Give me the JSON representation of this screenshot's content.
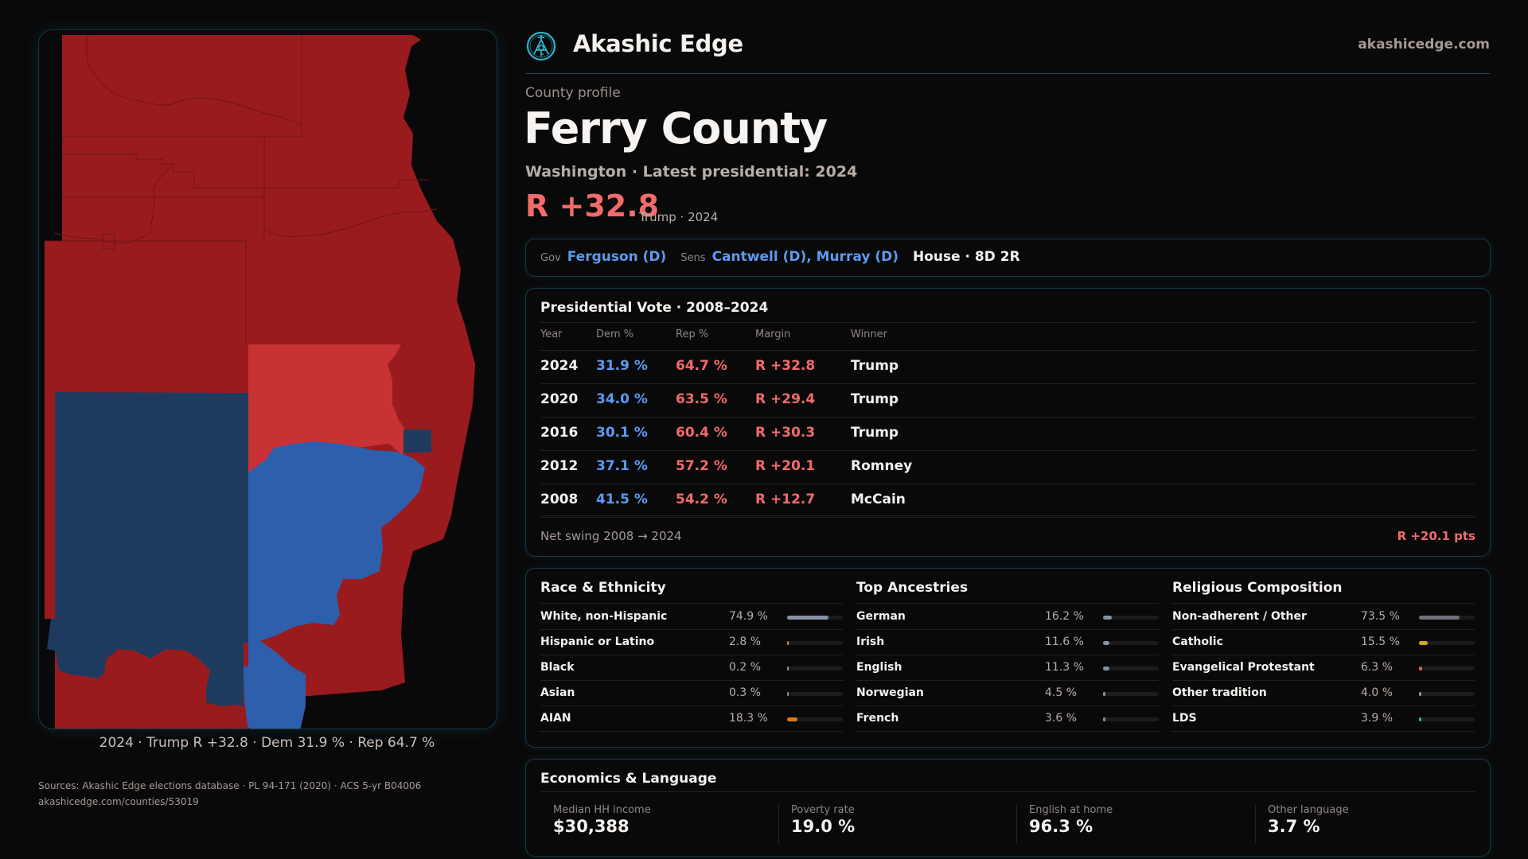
{
  "header": {
    "brand": "Akashic Edge",
    "logo_icon": "compass-key-emblem-icon",
    "site": "akashicedge.com"
  },
  "profile": {
    "label": "County profile",
    "county": "Ferry County",
    "subtitle": "Washington · Latest presidential: 2024",
    "margin": "R +32.8",
    "margin_sub": "Trump · 2024"
  },
  "officials": {
    "gov_label": "Gov",
    "gov": "Ferguson (D)",
    "sens_label": "Sens",
    "sens": "Cantwell (D), Murray (D)",
    "house": "House · 8D 2R"
  },
  "presidential": {
    "title": "Presidential Vote · 2008–2024",
    "columns": [
      "Year",
      "Dem %",
      "Rep %",
      "Margin",
      "Winner"
    ],
    "rows": [
      {
        "year": "2024",
        "dem": "31.9 %",
        "rep": "64.7 %",
        "margin": "R +32.8",
        "winner": "Trump"
      },
      {
        "year": "2020",
        "dem": "34.0 %",
        "rep": "63.5 %",
        "margin": "R +29.4",
        "winner": "Trump"
      },
      {
        "year": "2016",
        "dem": "30.1 %",
        "rep": "60.4 %",
        "margin": "R +30.3",
        "winner": "Trump"
      },
      {
        "year": "2012",
        "dem": "37.1 %",
        "rep": "57.2 %",
        "margin": "R +20.1",
        "winner": "Romney"
      },
      {
        "year": "2008",
        "dem": "41.5 %",
        "rep": "54.2 %",
        "margin": "R +12.7",
        "winner": "McCain"
      }
    ],
    "net_swing_label": "Net swing 2008 → 2024",
    "net_swing_value": "R +20.1 pts"
  },
  "demographics": [
    {
      "title": "Race & Ethnicity",
      "rows": [
        {
          "label": "White, non-Hispanic",
          "value": "74.9 %",
          "pct": 74.9,
          "color": "#8792a6"
        },
        {
          "label": "Hispanic or Latino",
          "value": "2.8 %",
          "pct": 2.8,
          "color": "#e08a1e"
        },
        {
          "label": "Black",
          "value": "0.2 %",
          "pct": 0.2,
          "color": "#8792a6"
        },
        {
          "label": "Asian",
          "value": "0.3 %",
          "pct": 0.3,
          "color": "#8792a6"
        },
        {
          "label": "AIAN",
          "value": "18.3 %",
          "pct": 18.3,
          "color": "#d9791a"
        }
      ]
    },
    {
      "title": "Top Ancestries",
      "rows": [
        {
          "label": "German",
          "value": "16.2 %",
          "pct": 16.2,
          "color": "#8792a6"
        },
        {
          "label": "Irish",
          "value": "11.6 %",
          "pct": 11.6,
          "color": "#8792a6"
        },
        {
          "label": "English",
          "value": "11.3 %",
          "pct": 11.3,
          "color": "#8792a6"
        },
        {
          "label": "Norwegian",
          "value": "4.5 %",
          "pct": 4.5,
          "color": "#8792a6"
        },
        {
          "label": "French",
          "value": "3.6 %",
          "pct": 3.6,
          "color": "#8792a6"
        }
      ]
    },
    {
      "title": "Religious Composition",
      "rows": [
        {
          "label": "Non-adherent / Other",
          "value": "73.5 %",
          "pct": 73.5,
          "color": "#6e717a"
        },
        {
          "label": "Catholic",
          "value": "15.5 %",
          "pct": 15.5,
          "color": "#d9a520"
        },
        {
          "label": "Evangelical Protestant",
          "value": "6.3 %",
          "pct": 6.3,
          "color": "#e05a5a"
        },
        {
          "label": "Other tradition",
          "value": "4.0 %",
          "pct": 4.0,
          "color": "#8792a6"
        },
        {
          "label": "LDS",
          "value": "3.9 %",
          "pct": 3.9,
          "color": "#1fb5a5"
        }
      ]
    }
  ],
  "economics": {
    "title": "Economics & Language",
    "cells": [
      {
        "label": "Median HH income",
        "value": "$30,388"
      },
      {
        "label": "Poverty rate",
        "value": "19.0 %"
      },
      {
        "label": "English at home",
        "value": "96.3 %"
      },
      {
        "label": "Other language",
        "value": "3.7 %"
      }
    ]
  },
  "sources": {
    "line1": "Sources: Akashic Edge elections database · PL 94-171 (2020) · ACS 5-yr B04006",
    "line2": "akashicedge.com/counties/53019"
  },
  "map": {
    "caption": "2024 · Trump R +32.8 · Dem 31.9 % · Rep 64.7 %",
    "colors": {
      "safe_r": "#9a1b1e",
      "lean_r": "#c93234",
      "safe_d": "#1f3a5f",
      "lean_d": "#2e5fad",
      "border": "#7a1518"
    }
  }
}
